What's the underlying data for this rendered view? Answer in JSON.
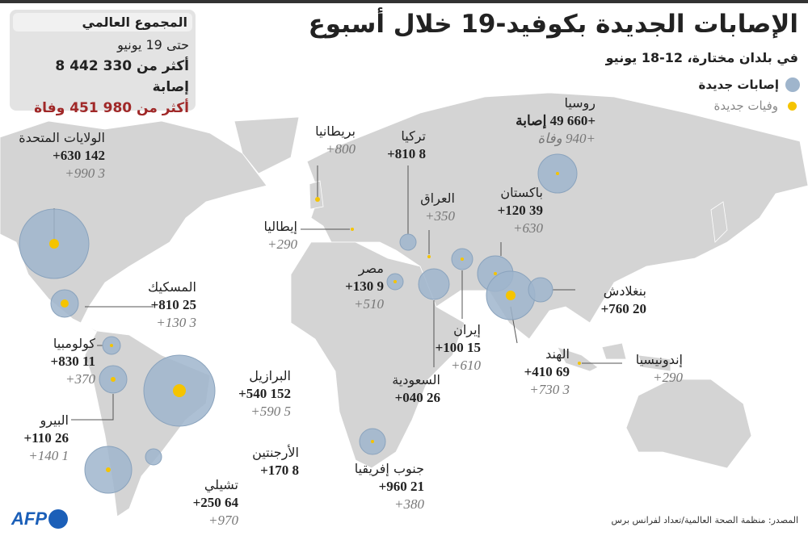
{
  "title": "الإصابات الجديدة بكوفيد-19 خلال أسبوع",
  "subtitle": "في بلدان مختارة، 12-18 يونيو",
  "legend": {
    "cases": "إصابات جديدة",
    "deaths": "وفيات جديدة"
  },
  "colors": {
    "cases_circle": "#9fb5cc",
    "deaths_dot": "#f5c400",
    "land": "#d4d4d4",
    "deaths_total": "#a02828",
    "brand": "#1b5fb8"
  },
  "totals": {
    "heading": "المجموع العالمي",
    "date": "حتى 19 يونيو",
    "cases": "أكثر من 330 442 8 إصابة",
    "deaths": "أكثر من 980 451 وفاة"
  },
  "countries": [
    {
      "name": "الولايات المتحدة",
      "cases": "142 630+",
      "deaths": "3 990+"
    },
    {
      "name": "المسكيك",
      "cases": "25 810+",
      "deaths": "3 130+"
    },
    {
      "name": "كولومبيا",
      "cases": "11 830+",
      "deaths": "370+"
    },
    {
      "name": "البيرو",
      "cases": "26 110+",
      "deaths": "1 140+"
    },
    {
      "name": "البرازيل",
      "cases": "152 540+",
      "deaths": "5 590+"
    },
    {
      "name": "الأرجنتين",
      "cases": "8 170+",
      "deaths": ""
    },
    {
      "name": "تشيلي",
      "cases": "64 250+",
      "deaths": "970+"
    },
    {
      "name": "بريطانيا",
      "cases": "",
      "deaths": "800+"
    },
    {
      "name": "إيطاليا",
      "cases": "",
      "deaths": "290+"
    },
    {
      "name": "تركيا",
      "cases": "8 810+",
      "deaths": ""
    },
    {
      "name": "العراق",
      "cases": "",
      "deaths": "350+"
    },
    {
      "name": "مصر",
      "cases": "9 130+",
      "deaths": "510+"
    },
    {
      "name": "السعودية",
      "cases": "26 040+",
      "deaths": ""
    },
    {
      "name": "إيران",
      "cases": "15 100+",
      "deaths": "610+"
    },
    {
      "name": "باكستان",
      "cases": "39 120+",
      "deaths": "630+"
    },
    {
      "name": "الهند",
      "cases": "69 410+",
      "deaths": "3 730+"
    },
    {
      "name": "بنغلادش",
      "cases": "20 760+",
      "deaths": ""
    },
    {
      "name": "إندونيسيا",
      "cases": "",
      "deaths": "290+"
    },
    {
      "name": "روسيا",
      "cases": "+660 49 إصابة",
      "deaths": "+940 وفاة"
    },
    {
      "name": "جنوب إفريقيا",
      "cases": "21 960+",
      "deaths": "380+"
    }
  ],
  "source": "المصدر: منظمة الصحة العالمية/تعداد لفرانس برس",
  "logo": "AFP"
}
